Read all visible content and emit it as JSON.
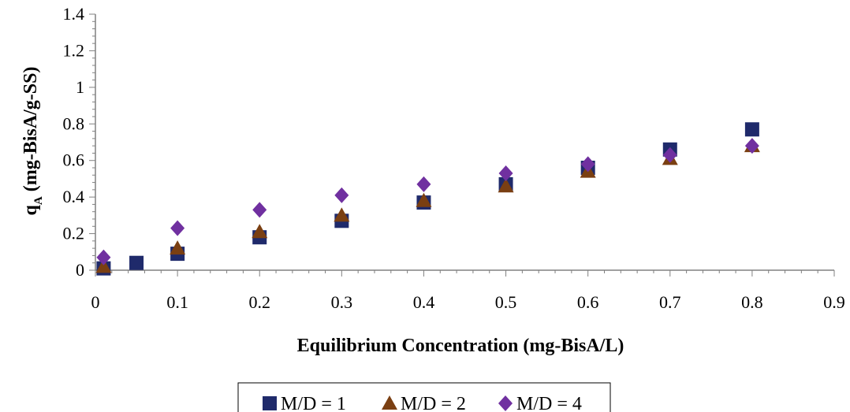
{
  "chart_data": {
    "type": "scatter",
    "xlabel": "Equilibrium Concentration (mg-BisA/L)",
    "ylabel_main": "q",
    "ylabel_sub": "A",
    "ylabel_rest": " (mg-BisA/g-SS)",
    "xlim": [
      0,
      0.9
    ],
    "ylim": [
      0,
      1.4
    ],
    "x_ticks": [
      "0",
      "0.1",
      "0.2",
      "0.3",
      "0.4",
      "0.5",
      "0.6",
      "0.7",
      "0.8",
      "0.9"
    ],
    "y_ticks": [
      "0",
      "0.2",
      "0.4",
      "0.6",
      "0.8",
      "1",
      "1.2",
      "1.4"
    ],
    "grid": false,
    "legend_position": "bottom",
    "series": [
      {
        "name": "M/D = 1",
        "marker": "square",
        "color": "#1f2a6b",
        "points": [
          [
            0.01,
            0.01
          ],
          [
            0.05,
            0.04
          ],
          [
            0.1,
            0.09
          ],
          [
            0.2,
            0.18
          ],
          [
            0.3,
            0.27
          ],
          [
            0.4,
            0.37
          ],
          [
            0.5,
            0.47
          ],
          [
            0.6,
            0.56
          ],
          [
            0.7,
            0.66
          ],
          [
            0.8,
            0.77
          ]
        ]
      },
      {
        "name": "M/D = 2",
        "marker": "triangle",
        "color": "#7a3f12",
        "points": [
          [
            0.01,
            0.02
          ],
          [
            0.1,
            0.12
          ],
          [
            0.2,
            0.21
          ],
          [
            0.3,
            0.3
          ],
          [
            0.4,
            0.38
          ],
          [
            0.5,
            0.46
          ],
          [
            0.6,
            0.54
          ],
          [
            0.7,
            0.61
          ],
          [
            0.8,
            0.68
          ]
        ]
      },
      {
        "name": "M/D = 4",
        "marker": "diamond",
        "color": "#7030a0",
        "points": [
          [
            0.01,
            0.07
          ],
          [
            0.1,
            0.23
          ],
          [
            0.2,
            0.33
          ],
          [
            0.3,
            0.41
          ],
          [
            0.4,
            0.47
          ],
          [
            0.5,
            0.53
          ],
          [
            0.6,
            0.58
          ],
          [
            0.7,
            0.63
          ],
          [
            0.8,
            0.68
          ]
        ]
      }
    ]
  }
}
